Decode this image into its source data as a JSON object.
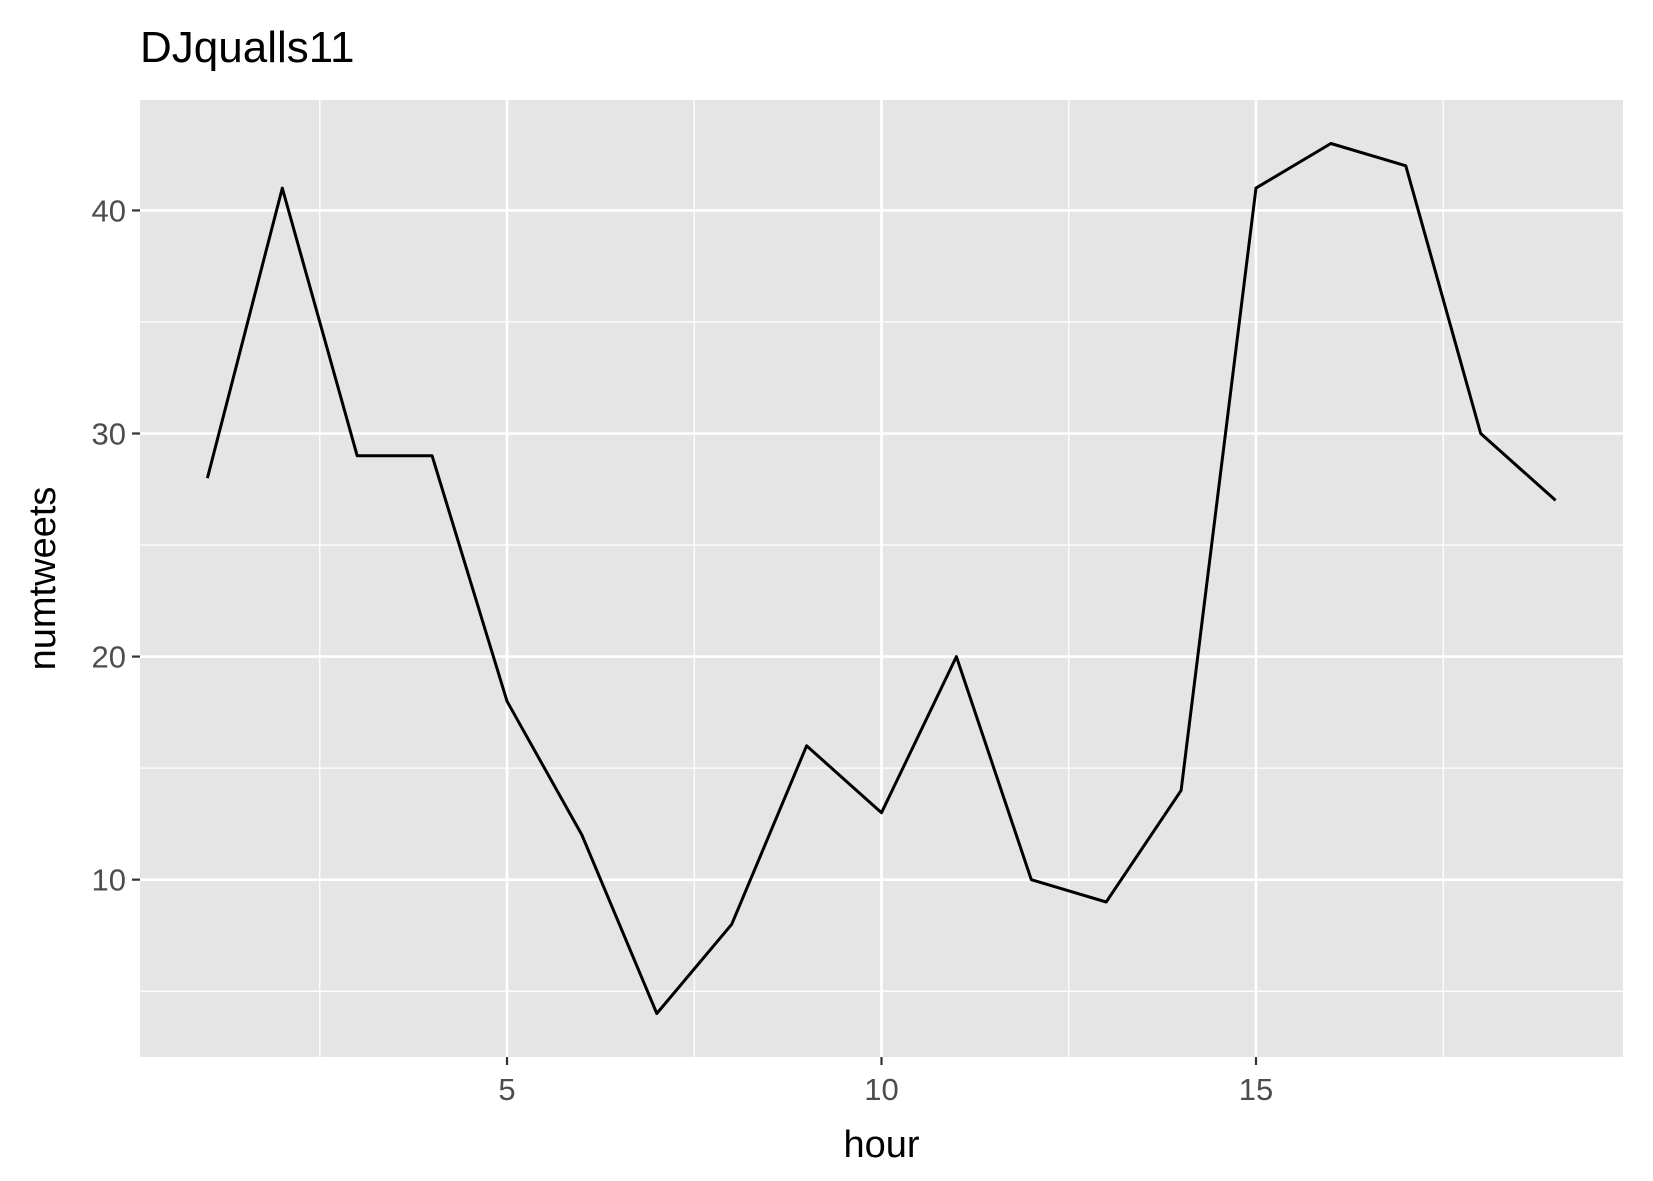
{
  "chart_data": {
    "type": "line",
    "title": "DJqualls11",
    "xlabel": "hour",
    "ylabel": "numtweets",
    "x": [
      1,
      2,
      3,
      4,
      5,
      6,
      7,
      8,
      9,
      10,
      11,
      12,
      13,
      14,
      15,
      16,
      17,
      18,
      19
    ],
    "series": [
      {
        "values": [
          28,
          41,
          29,
          29,
          18,
          12,
          4,
          8,
          16,
          13,
          20,
          10,
          9,
          14,
          41,
          43,
          42,
          30,
          27
        ]
      }
    ],
    "xlim": [
      0.1,
      19.9
    ],
    "ylim": [
      2.05,
      44.95
    ],
    "x_ticks": [
      5,
      10,
      15
    ],
    "x_tick_labels": [
      "5",
      "10",
      "15"
    ],
    "x_minor_ticks": [
      2.5,
      7.5,
      12.5,
      17.5
    ],
    "y_ticks": [
      10,
      20,
      30,
      40
    ],
    "y_tick_labels": [
      "10",
      "20",
      "30",
      "40"
    ],
    "y_minor_ticks": [
      5,
      15,
      25,
      35
    ],
    "grid": true,
    "colors": {
      "panel_background": "#e5e5e5",
      "grid": "#ffffff",
      "line": "#000000",
      "tick_label": "#4d4d4d"
    }
  }
}
